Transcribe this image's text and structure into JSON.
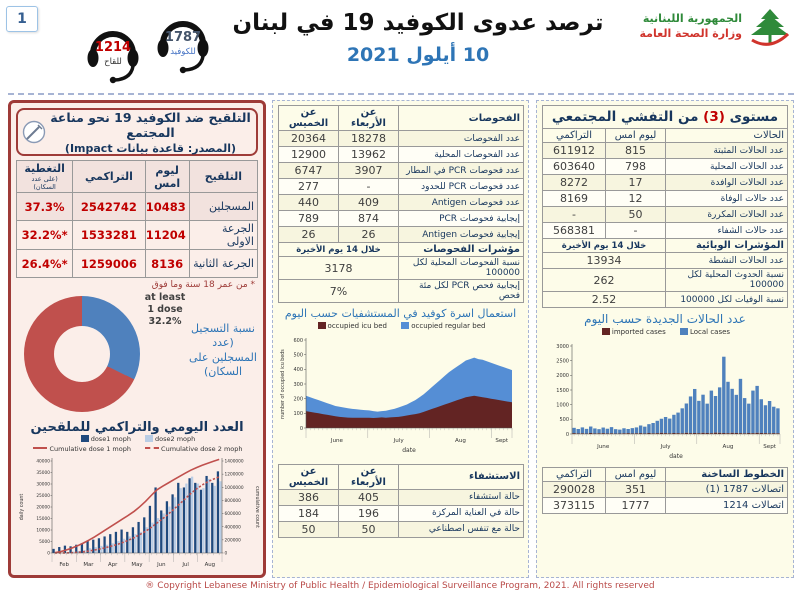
{
  "page": {
    "number": "1",
    "copyright": "® Copyright Lebanese Ministry of Public Health / Epidemiological Surveillance Program, 2021. All rights reserved"
  },
  "header": {
    "title": "ترصد عدوى الكوفيد 19 في لبنان",
    "date": "10 أيلول 2021",
    "ministry_line1": "الجمهورية اللبنانية",
    "ministry_line2": "وزارة الصحة العامة",
    "hotline_covid": {
      "number": "1787",
      "label": "للكوفيد"
    },
    "hotline_vaccine": {
      "number": "1214",
      "label": "للقاح"
    }
  },
  "vaccination": {
    "title": "التلقيح ضد الكوفيد 19  نحو مناعة المجتمع",
    "source": "(المصدر: قاعدة بيانات Impact)",
    "col_vaccination": "التلقيح",
    "col_yesterday": "ليوم امس",
    "col_cumulative": "التراكمي",
    "col_coverage": "التغطية",
    "col_coverage_note": "(على عدد السكان)",
    "rows": [
      {
        "label": "المسجلين",
        "yesterday": "10483",
        "cumulative": "2542742",
        "coverage": "37.3%"
      },
      {
        "label": "الجرعة الاولى",
        "yesterday": "11204",
        "cumulative": "1533281",
        "coverage": "*32.2%"
      },
      {
        "label": "الجرعة الثانية",
        "yesterday": "8136",
        "cumulative": "1259006",
        "coverage": "*26.4%"
      }
    ],
    "footnote": "* من عمر 18 سنة وما فوق",
    "donut_label": {
      "l1": "at least",
      "l2": "1 dose",
      "l3": "32.2%"
    },
    "donut_caption": "نسبة التسجيل (عدد المسجلين على السكان)",
    "chart_title": "العدد اليومي والتراكمي للملقحين"
  },
  "tests": {
    "col_label": "الفحوصات",
    "col_wed": "عن الأربعاء",
    "col_thu": "عن الخميس",
    "rows": [
      {
        "label": "عدد الفحوصات",
        "wed": "18278",
        "thu": "20364"
      },
      {
        "label": "عدد الفحوصات المحلية",
        "wed": "13962",
        "thu": "12900"
      },
      {
        "label": "عدد فحوصات PCR في المطار",
        "wed": "3907",
        "thu": "6747"
      },
      {
        "label": "عدد فحوصات PCR للحدود",
        "wed": "-",
        "thu": "277"
      },
      {
        "label": "عدد فحوصات Antigen",
        "wed": "409",
        "thu": "440"
      },
      {
        "label": "إيجابية فحوصات PCR",
        "wed": "874",
        "thu": "789"
      },
      {
        "label": "إيجابية فحوصات Antigen",
        "wed": "26",
        "thu": "26"
      }
    ],
    "ind_header": "مؤشرات الفحوصات",
    "ind_period": "خلال 14 يوم الأخيرة",
    "ind_rows": [
      {
        "label": "نسبة الفحوصات المحلية لكل 100000",
        "value": "3178"
      },
      {
        "label": "إيجابية فحص PCR لكل مئة فحص",
        "value": "7%"
      }
    ],
    "beds_chart_title": "استعمال اسرة كوفيد في المستشفيات حسب اليوم",
    "hosp_col_label": "الاستشفاء",
    "hosp_rows": [
      {
        "label": "حالة استشفاء",
        "wed": "405",
        "thu": "386"
      },
      {
        "label": "حالة في العناية المركزة",
        "wed": "196",
        "thu": "184"
      },
      {
        "label": "حالة مع تنفس اصطناعي",
        "wed": "50",
        "thu": "50"
      }
    ]
  },
  "cases": {
    "title_pre": "مستوى",
    "title_level": "(3)",
    "title_post": "من التفشي المجتمعي",
    "col_label": "الحالات",
    "col_yesterday": "ليوم امس",
    "col_cumulative": "التراكمي",
    "rows": [
      {
        "label": "عدد الحالات المثبتة",
        "yesterday": "815",
        "cumulative": "611912"
      },
      {
        "label": "عدد الحالات المحلية",
        "yesterday": "798",
        "cumulative": "603640"
      },
      {
        "label": "عدد الحالات الوافدة",
        "yesterday": "17",
        "cumulative": "8272"
      },
      {
        "label": "عدد حالات الوفاة",
        "yesterday": "12",
        "cumulative": "8169"
      },
      {
        "label": "عدد الحالات المكررة",
        "yesterday": "50",
        "cumulative": "-"
      },
      {
        "label": "عدد حالات الشفاء",
        "yesterday": "-",
        "cumulative": "568381"
      }
    ],
    "epi_header": "المؤشرات الوبائية",
    "epi_period": "خلال 14 يوم الأخيرة",
    "epi_rows": [
      {
        "label": "عدد الحالات النشطة",
        "value": "13934"
      },
      {
        "label": "نسبة الحدوث المحلية لكل 100000",
        "value": "262"
      },
      {
        "label": "نسبة الوفيات لكل 100000",
        "value": "2.52"
      }
    ],
    "chart_title": "عدد الحالات الجديدة حسب اليوم",
    "hot_header": "الخطوط الساخنة",
    "hot_rows": [
      {
        "label": "اتصالات 1787 (1)",
        "yesterday": "351",
        "cumulative": "290028"
      },
      {
        "label": "اتصالات 1214",
        "yesterday": "1777",
        "cumulative": "373115"
      }
    ]
  },
  "chart_data": [
    {
      "id": "donut",
      "type": "pie",
      "title": "نسبة التسجيل (عدد المسجلين على السكان)",
      "labels": [
        "at least 1 dose",
        "remaining population"
      ],
      "values": [
        32.2,
        67.8
      ],
      "colors": [
        "#4f81bd",
        "#c0504d"
      ]
    },
    {
      "id": "vax",
      "type": "bar+line",
      "title": "العدد اليومي والتراكمي للملقحين",
      "months": [
        "Feb",
        "Mar",
        "Apr",
        "May",
        "Jun",
        "Jul",
        "Aug"
      ],
      "ylabel_left": "daily count",
      "ylabel_right": "cumulative count",
      "daily_max": 40000,
      "daily_step": 5000,
      "cumulative_max": 1400000,
      "cumulative_step": 200000,
      "series_daily": [
        {
          "name": "dose1  moph",
          "color": "#1f497d",
          "values": [
            1800,
            2600,
            3200,
            2900,
            3600,
            4200,
            5200,
            5800,
            6400,
            7200,
            8200,
            9200,
            10200,
            9200,
            11200,
            13500,
            15500,
            20500,
            28500,
            18500,
            22500,
            25500,
            30500,
            28500,
            32500,
            30500,
            27500,
            33500,
            30500,
            35500
          ]
        },
        {
          "name": "dose2  moph",
          "color": "#b9cde5",
          "values": [
            0,
            0,
            300,
            600,
            900,
            1300,
            2100,
            2600,
            3100,
            3600,
            4200,
            5200,
            6200,
            7200,
            8200,
            9200,
            11200,
            13200,
            15200,
            17200,
            20200,
            24200,
            28200,
            30200,
            33200,
            30200,
            28200,
            32200,
            29200,
            31200
          ]
        }
      ],
      "series_cumulative": [
        {
          "name": "Cumulative dose 1 moph",
          "color": "#c0504d",
          "dash": false,
          "values": [
            5000,
            20000,
            45000,
            75000,
            110000,
            150000,
            195000,
            245000,
            300000,
            355000,
            410000,
            465000,
            520000,
            575000,
            635000,
            705000,
            785000,
            875000,
            960000,
            1015000,
            1065000,
            1115000,
            1165000,
            1215000,
            1260000,
            1300000,
            1335000,
            1365000,
            1395000,
            1425000
          ]
        },
        {
          "name": "Cumulative dose 2 moph",
          "color": "#c0504d",
          "dash": true,
          "values": [
            0,
            0,
            1000,
            4000,
            10000,
            18000,
            30000,
            45000,
            62000,
            82000,
            105000,
            130000,
            160000,
            195000,
            235000,
            280000,
            330000,
            390000,
            455000,
            520000,
            590000,
            665000,
            745000,
            825000,
            905000,
            975000,
            1035000,
            1085000,
            1125000,
            1160000
          ]
        }
      ]
    },
    {
      "id": "beds",
      "type": "area",
      "title": "استعمال اسرة كوفيد في المستشفيات حسب اليوم",
      "months": [
        "June",
        "July",
        "Aug",
        "Sept"
      ],
      "month_fracs": [
        0,
        0.3,
        0.6,
        0.9,
        1
      ],
      "ymax": 600,
      "ystep": 100,
      "ylabel": "number of occupied icu beds",
      "xlabel": "date",
      "series": [
        {
          "name": "occupied icu bed",
          "color": "#632423",
          "values": [
            115,
            110,
            105,
            100,
            95,
            90,
            85,
            80,
            76,
            73,
            71,
            70,
            70,
            70,
            70,
            70,
            68,
            70,
            72,
            70,
            72,
            74,
            76,
            80,
            85,
            90,
            95,
            100,
            110,
            120,
            130,
            140,
            150,
            160,
            170,
            180,
            190,
            200,
            210,
            215,
            220,
            215,
            210,
            205,
            200,
            195,
            190,
            185,
            180,
            175
          ]
        },
        {
          "name": "occupied regular bed",
          "color": "#558ed5",
          "values": [
            105,
            100,
            95,
            90,
            85,
            80,
            75,
            70,
            69,
            67,
            64,
            60,
            58,
            55,
            52,
            50,
            47,
            42,
            43,
            48,
            53,
            56,
            64,
            70,
            75,
            85,
            95,
            110,
            120,
            135,
            150,
            165,
            180,
            195,
            210,
            220,
            230,
            240,
            250,
            255,
            260,
            255,
            255,
            250,
            245,
            240,
            235,
            230,
            225,
            220
          ]
        }
      ]
    },
    {
      "id": "cases",
      "type": "bar",
      "title": "عدد الحالات الجديدة حسب اليوم",
      "months": [
        "June",
        "July",
        "Aug",
        "Sept"
      ],
      "month_fracs": [
        0,
        0.3,
        0.6,
        0.9,
        1
      ],
      "ymax": 3000,
      "ystep": 500,
      "xlabel": "date",
      "series": [
        {
          "name": "imported cases",
          "color": "#632423",
          "values": [
            30,
            20,
            25,
            15,
            35,
            20,
            25,
            30,
            20,
            25,
            15,
            20,
            25,
            30,
            20,
            25,
            30,
            20,
            35,
            25,
            30,
            40,
            30,
            25,
            35,
            30,
            25,
            40,
            30,
            35,
            30,
            40,
            35,
            30,
            45,
            40,
            35,
            30,
            40,
            35,
            30,
            25,
            35,
            30,
            40,
            35,
            30,
            25,
            30,
            25
          ]
        },
        {
          "name": "Local cases",
          "color": "#4f81bd",
          "values": [
            180,
            150,
            200,
            160,
            220,
            170,
            140,
            190,
            160,
            210,
            150,
            130,
            170,
            140,
            180,
            200,
            260,
            230,
            300,
            350,
            420,
            480,
            550,
            500,
            620,
            700,
            850,
            1000,
            1250,
            1500,
            1100,
            1300,
            1000,
            1450,
            1250,
            1550,
            2600,
            1750,
            1500,
            1300,
            1850,
            1200,
            1000,
            1450,
            1600,
            1150,
            950,
            1100,
            900,
            850
          ]
        }
      ]
    }
  ]
}
